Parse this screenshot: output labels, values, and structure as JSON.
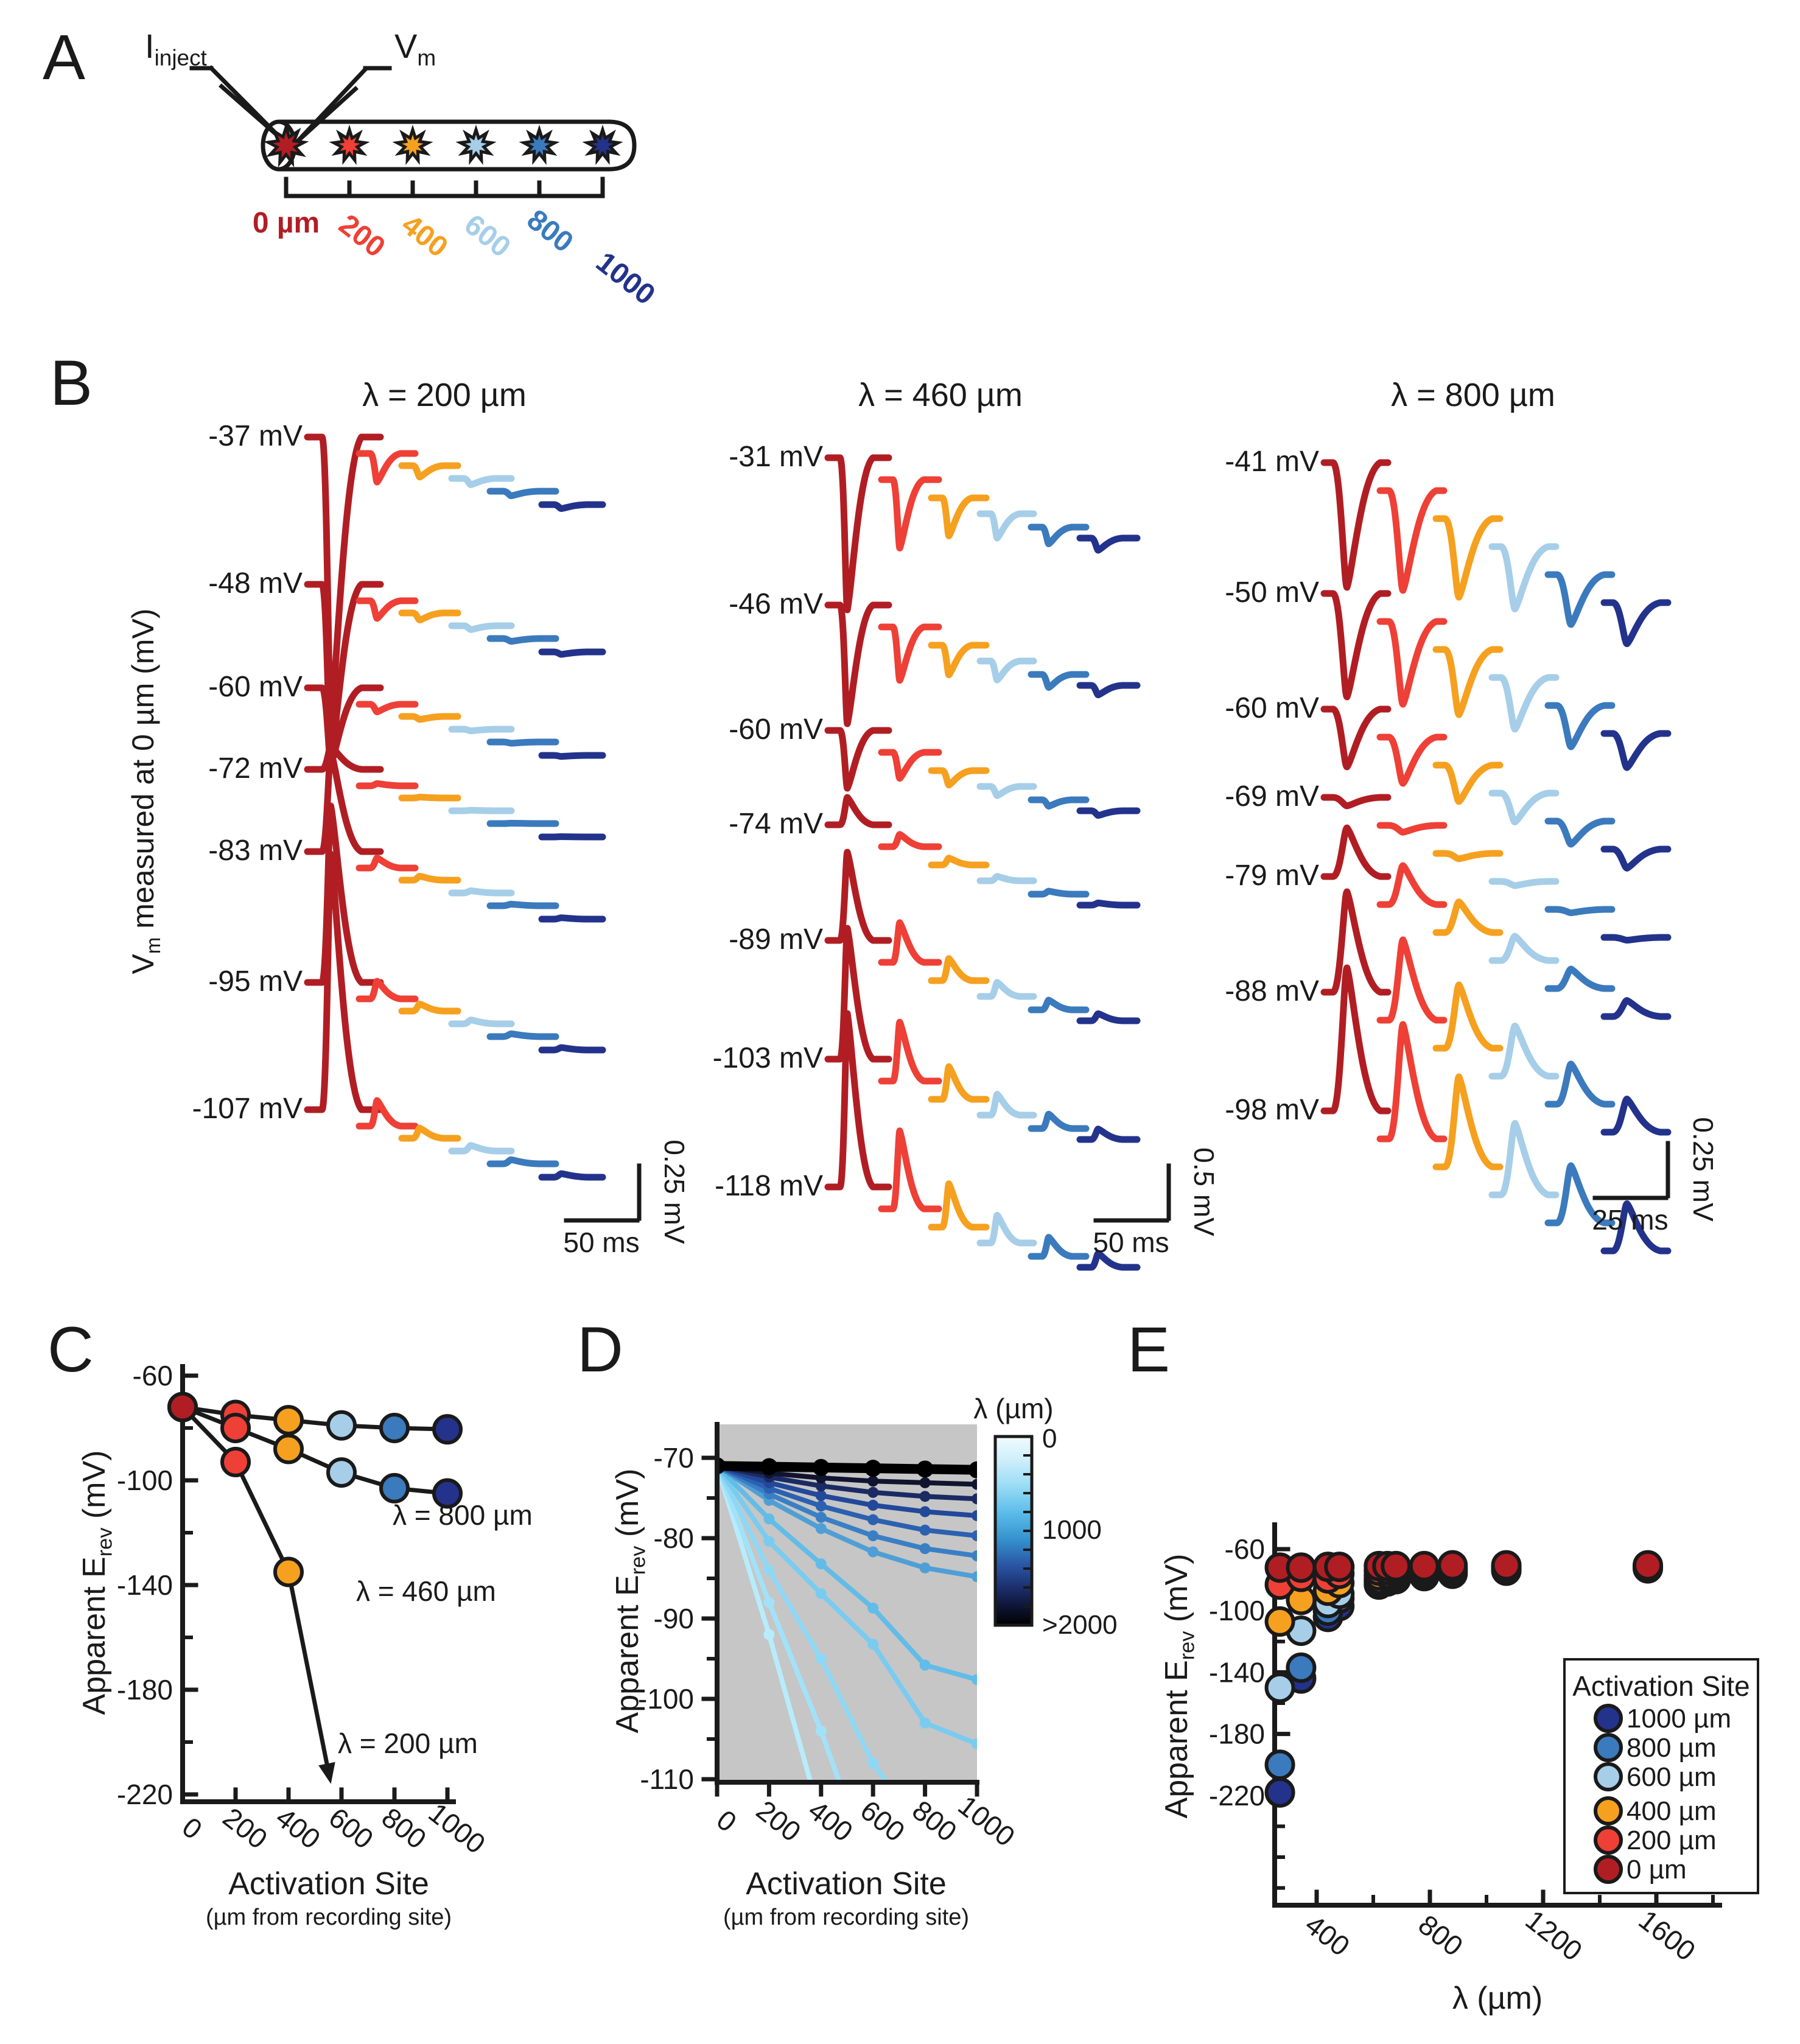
{
  "panels": {
    "A": "A",
    "B": "B",
    "C": "C",
    "D": "D",
    "E": "E"
  },
  "site_colors": {
    "0": "#b01e24",
    "200": "#ee4036",
    "400": "#f6a01f",
    "600": "#a6cee8",
    "800": "#3b7abd",
    "1000": "#23338c"
  },
  "panelA": {
    "inject_label": [
      {
        "t": "I"
      },
      {
        "t": "inject",
        "sub": true
      }
    ],
    "vm_label": [
      {
        "t": "V"
      },
      {
        "t": "m",
        "sub": true
      }
    ],
    "sites": [
      {
        "label": "0 µm",
        "color": "#b01e24"
      },
      {
        "label": "200",
        "color": "#ee4036"
      },
      {
        "label": "400",
        "color": "#f6a01f"
      },
      {
        "label": "600",
        "color": "#a6cee8"
      },
      {
        "label": "800",
        "color": "#3b7abd"
      },
      {
        "label": "1000",
        "color": "#23338c"
      }
    ]
  },
  "panelB": {
    "y_axis_label": [
      {
        "t": "V"
      },
      {
        "t": "m",
        "sub": true
      },
      {
        "t": " measured at 0 µm (mV)"
      }
    ],
    "columns": [
      {
        "title": "λ = 200 µm",
        "rows": [
          {
            "label": "-37 mV",
            "amp": -470
          },
          {
            "label": "-48 mV",
            "amp": -290
          },
          {
            "label": "-60 mV",
            "amp": -125
          },
          {
            "label": "-72 mV",
            "amp": 38
          },
          {
            "label": "-83 mV",
            "amp": 165
          },
          {
            "label": "-95 mV",
            "amp": 290
          },
          {
            "label": "-107 mV",
            "amp": 420
          }
        ],
        "site_decay": [
          1,
          0.1,
          0.04,
          0.022,
          0.016,
          0.014
        ],
        "scalebar": {
          "v": "0.25 mV",
          "h": "50 ms"
        }
      },
      {
        "title": "λ = 460 µm",
        "rows": [
          {
            "label": "-31 mV",
            "amp": -250
          },
          {
            "label": "-46 mV",
            "amp": -195
          },
          {
            "label": "-60 mV",
            "amp": -95
          },
          {
            "label": "-74 mV",
            "amp": 45
          },
          {
            "label": "-89 mV",
            "amp": 145
          },
          {
            "label": "-103 mV",
            "amp": 215
          },
          {
            "label": "-118 mV",
            "amp": 285
          }
        ],
        "site_decay": [
          1,
          0.45,
          0.25,
          0.16,
          0.11,
          0.08
        ],
        "scalebar": {
          "v": "0.5 mV",
          "h": "50 ms"
        }
      },
      {
        "title": "λ = 800 µm",
        "rows": [
          {
            "label": "-41 mV",
            "amp": -205
          },
          {
            "label": "-50 mV",
            "amp": -170
          },
          {
            "label": "-60 mV",
            "amp": -95
          },
          {
            "label": "-69 mV",
            "amp": -14
          },
          {
            "label": "-79 mV",
            "amp": 80
          },
          {
            "label": "-88 mV",
            "amp": 165
          },
          {
            "label": "-98 mV",
            "amp": 235
          }
        ],
        "site_decay": [
          1,
          0.8,
          0.63,
          0.5,
          0.4,
          0.33
        ],
        "scalebar": {
          "v": "0.25 mV",
          "h": "25 ms"
        }
      }
    ]
  },
  "chart_data": [
    {
      "id": "C",
      "type": "scatter",
      "ylabel": [
        {
          "t": "Apparent E"
        },
        {
          "t": "rev",
          "sub": true
        },
        {
          "t": " (mV)"
        }
      ],
      "xlabel": "Activation Site",
      "xlabel2": "(µm from recording site)",
      "yticks": [
        -60,
        -100,
        -140,
        -180,
        -220
      ],
      "xticks": [
        0,
        200,
        400,
        600,
        800,
        1000
      ],
      "ylim": [
        -60,
        -220
      ],
      "series": [
        {
          "name": "λ = 800 µm",
          "x": [
            0,
            200,
            400,
            600,
            800,
            1000
          ],
          "y": [
            -72,
            -75,
            -77,
            -79,
            -80,
            -80.5
          ],
          "point_sites": [
            "0",
            "200",
            "400",
            "600",
            "800",
            "1000"
          ]
        },
        {
          "name": "λ = 460 µm",
          "x": [
            0,
            200,
            400,
            600,
            800,
            1000
          ],
          "y": [
            -72,
            -80,
            -88,
            -97,
            -103,
            -105
          ],
          "point_sites": [
            "0",
            "200",
            "400",
            "600",
            "800",
            "1000"
          ]
        },
        {
          "name": "λ = 200 µm",
          "x": [
            0,
            200,
            400
          ],
          "y": [
            -72,
            -93,
            -135
          ],
          "point_sites": [
            "0",
            "200",
            "400"
          ],
          "arrow_to": {
            "x": 560,
            "y": -216
          }
        }
      ],
      "annotations": [
        {
          "text": "λ = 800 µm",
          "x": 645,
          "y": 2505
        },
        {
          "text": "λ = 460 µm",
          "x": 585,
          "y": 2630
        },
        {
          "text": "λ = 200 µm",
          "x": 555,
          "y": 2880
        }
      ]
    },
    {
      "id": "D",
      "type": "line",
      "plot_bg": "#c6c6c6",
      "ylabel": [
        {
          "t": "Apparent E"
        },
        {
          "t": "rev",
          "sub": true
        },
        {
          "t": " (mV)"
        }
      ],
      "xlabel": "Activation Site",
      "xlabel2": "(µm from recording site)",
      "yticks": [
        -70,
        -80,
        -90,
        -100,
        -110
      ],
      "xticks": [
        0,
        200,
        400,
        600,
        800,
        1000
      ],
      "ylim": [
        -70,
        -110
      ],
      "colorbar": {
        "title": "λ (µm)",
        "top_label": "0",
        "mid_label": "1000",
        "bottom_label": ">2000"
      },
      "x": [
        0,
        200,
        400,
        600,
        800,
        1000
      ],
      "series": [
        {
          "lambda": "250",
          "color": "#b7ecfc",
          "y": [
            -71,
            -92,
            -115
          ]
        },
        {
          "lambda": "290",
          "color": "#a2e2f9",
          "y": [
            -71,
            -88,
            -104,
            -122
          ]
        },
        {
          "lambda": "330",
          "color": "#8fd8f5",
          "y": [
            -71,
            -84,
            -95,
            -108,
            -117,
            -123
          ]
        },
        {
          "lambda": "430",
          "color": "#79ccf0",
          "y": [
            -71,
            -80.4,
            -86.9,
            -93.2,
            -103,
            -105.6
          ]
        },
        {
          "lambda": "470",
          "color": "#62bce8",
          "y": [
            -71,
            -77.6,
            -83.2,
            -88.7,
            -95.8,
            -97.6
          ]
        },
        {
          "lambda": "620",
          "color": "#4f9fd6",
          "y": [
            -71,
            -75.3,
            -78.8,
            -81.7,
            -83.7,
            -84.8
          ]
        },
        {
          "lambda": "680",
          "color": "#3a7fc4",
          "y": [
            -71,
            -74.5,
            -77.4,
            -79.7,
            -81.3,
            -82.2
          ]
        },
        {
          "lambda": "780",
          "color": "#2b61b0",
          "y": [
            -71,
            -73.8,
            -76,
            -77.7,
            -79,
            -79.7
          ]
        },
        {
          "lambda": "880",
          "color": "#22489a",
          "y": [
            -71,
            -73.1,
            -74.7,
            -75.9,
            -76.7,
            -77.2
          ]
        },
        {
          "lambda": "1070",
          "color": "#1b2a63",
          "y": [
            -71,
            -72.4,
            -73.5,
            -74.3,
            -74.8,
            -75.1
          ]
        },
        {
          "lambda": "1570",
          "color": "#10142e",
          "y": [
            -71,
            -71.9,
            -72.5,
            -72.9,
            -73.1,
            -73.3
          ]
        },
        {
          "lambda": ">2000",
          "color": "#000000",
          "y": [
            -71,
            -71.1,
            -71.2,
            -71.3,
            -71.4,
            -71.5
          ],
          "thick": true
        }
      ]
    },
    {
      "id": "E",
      "type": "scatter",
      "ylabel": [
        {
          "t": "Apparent E"
        },
        {
          "t": "rev",
          "sub": true
        },
        {
          "t": " (mV)"
        }
      ],
      "xlabel": "λ  (µm)",
      "yticks": [
        -60,
        -100,
        -140,
        -180,
        -220
      ],
      "xticks": [
        400,
        800,
        1200,
        1600
      ],
      "lambdas": [
        270,
        345,
        440,
        480,
        620,
        650,
        680,
        780,
        880,
        1070,
        1570
      ],
      "legend": {
        "title": "Activation Site",
        "entries": [
          {
            "label": "1000 µm",
            "color": "#23338c"
          },
          {
            "label": "800 µm",
            "color": "#3b7abd"
          },
          {
            "label": "600 µm",
            "color": "#a6cee8"
          },
          {
            "label": "400 µm",
            "color": "#f6a01f"
          },
          {
            "label": "200 µm",
            "color": "#ee4036"
          },
          {
            "label": "0 µm",
            "color": "#b01e24"
          }
        ]
      },
      "series": [
        {
          "site": "1000 µm",
          "color": "#23338c",
          "y": [
            -218,
            -144,
            -104,
            -97,
            -83,
            -81,
            -79.5,
            -77.5,
            -76,
            -74,
            -72.5
          ]
        },
        {
          "site": "800 µm",
          "color": "#3b7abd",
          "y": [
            -200,
            -137,
            -100,
            -92,
            -81,
            -79.5,
            -78,
            -76.5,
            -75,
            -73,
            -72
          ]
        },
        {
          "site": "600 µm",
          "color": "#a6cee8",
          "y": [
            -150,
            -113,
            -95,
            -89,
            -79.5,
            -78,
            -77,
            -75.5,
            -74,
            -72.5,
            -71.5
          ]
        },
        {
          "site": "400 µm",
          "color": "#f6a01f",
          "y": [
            -107,
            -93,
            -87,
            -82,
            -77,
            -76,
            -75,
            -74,
            -73,
            -72,
            -71.5
          ]
        },
        {
          "site": "200 µm",
          "color": "#ee4036",
          "y": [
            -83,
            -78,
            -79,
            -76,
            -74,
            -73.5,
            -73,
            -72.5,
            -72,
            -71.5,
            -71
          ]
        },
        {
          "site": "0 µm",
          "color": "#b01e24",
          "y": [
            -72,
            -72,
            -71.5,
            -71.5,
            -71,
            -71,
            -71,
            -71,
            -70.5,
            -70.5,
            -70.5
          ]
        }
      ]
    }
  ]
}
